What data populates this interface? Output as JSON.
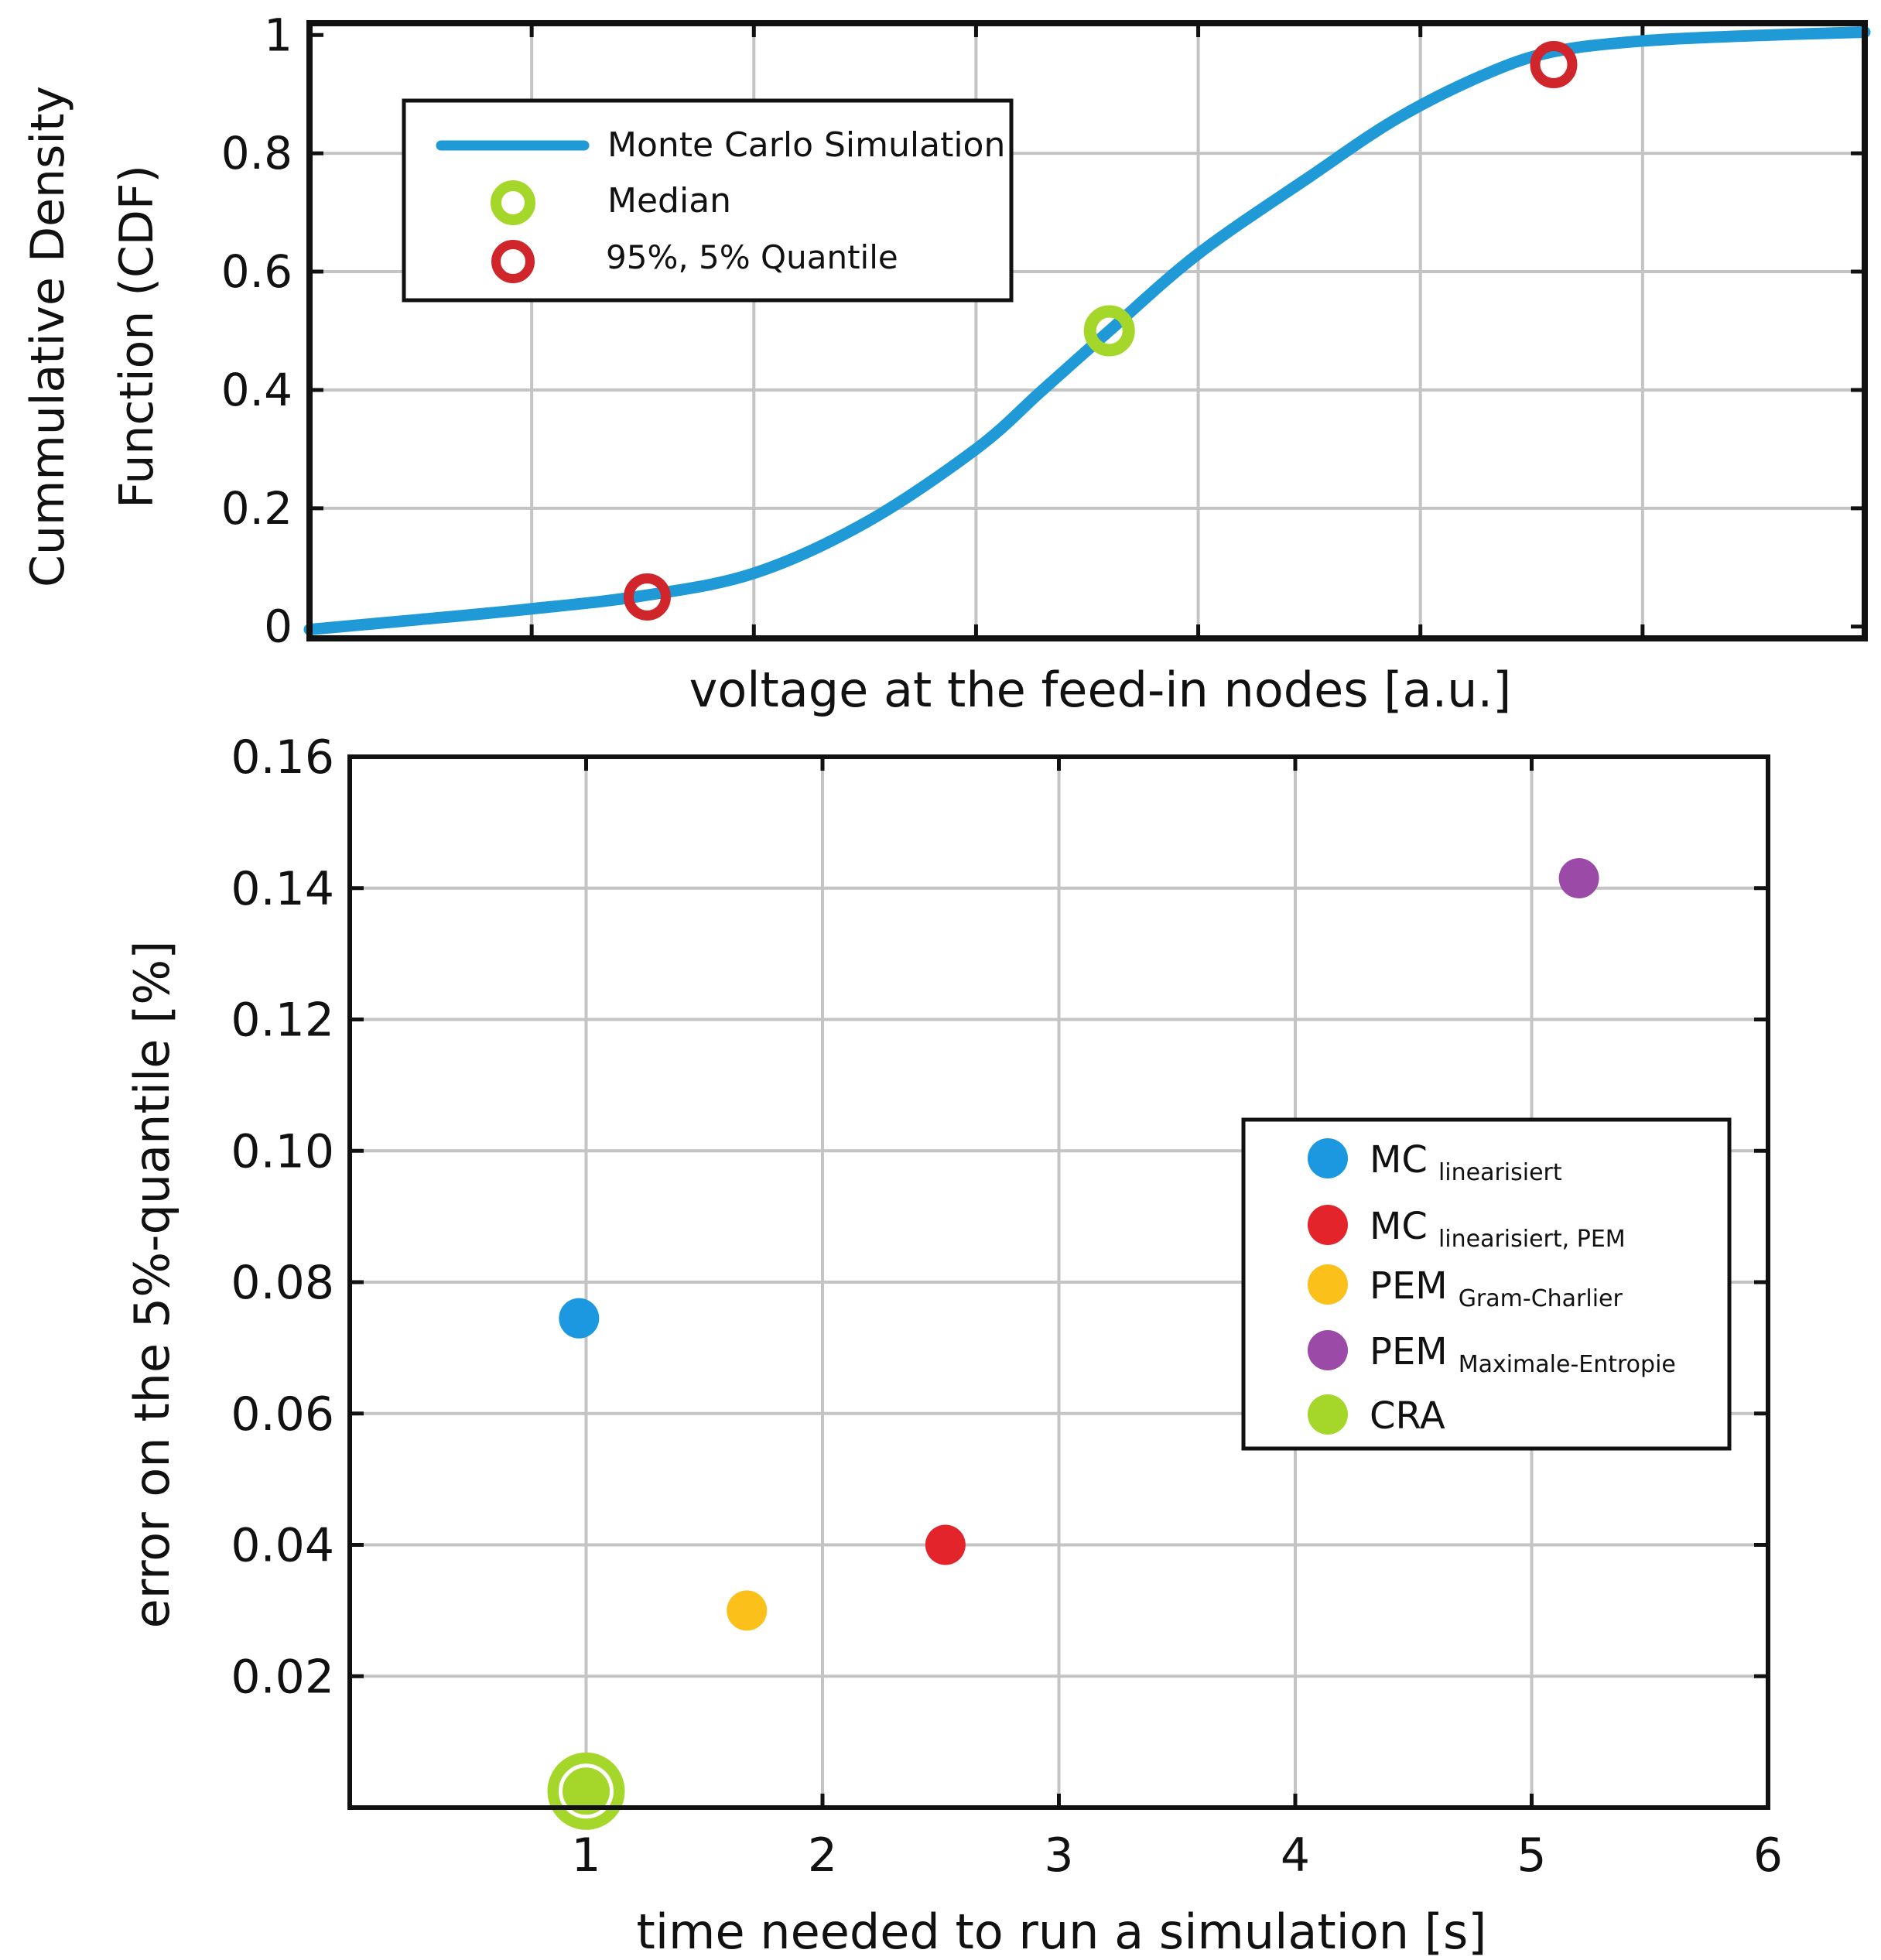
{
  "chart_data": [
    {
      "type": "line",
      "title": "",
      "xlabel": "voltage at the feed-in nodes [a.u.]",
      "ylabel_lines": [
        "Cummulative Density",
        "Function (CDF)"
      ],
      "xlim": [
        0,
        7
      ],
      "ylim": [
        -0.02,
        1.02
      ],
      "x_ticks": [
        1,
        2,
        3,
        4,
        5,
        6
      ],
      "x_tick_labels_shown": false,
      "y_ticks": [
        0,
        0.2,
        0.4,
        0.6,
        0.8,
        1
      ],
      "y_tick_labels": [
        "0",
        "0.2",
        "0.4",
        "0.6",
        "0.8",
        "1"
      ],
      "grid": true,
      "legend_position": "top-left",
      "colors": {
        "line": "#1f9ad6",
        "median": "#a4d72a",
        "quantile": "#d0262b"
      },
      "series": [
        {
          "name": "Monte Carlo Simulation",
          "points": [
            [
              0,
              -0.005
            ],
            [
              0.5,
              0.012
            ],
            [
              1.0,
              0.03
            ],
            [
              1.5,
              0.052
            ],
            [
              2.0,
              0.09
            ],
            [
              2.5,
              0.175
            ],
            [
              3.0,
              0.3
            ],
            [
              3.3,
              0.4
            ],
            [
              3.6,
              0.5
            ],
            [
              4.0,
              0.63
            ],
            [
              4.5,
              0.76
            ],
            [
              4.9,
              0.86
            ],
            [
              5.3,
              0.935
            ],
            [
              5.6,
              0.972
            ],
            [
              6.0,
              0.99
            ],
            [
              6.5,
              0.999
            ],
            [
              7.0,
              1.005
            ]
          ]
        }
      ],
      "markers": [
        {
          "name": "Median",
          "x": 3.6,
          "y": 0.5,
          "color": "#a4d72a"
        },
        {
          "name": "95%, 5% Quantile",
          "x": 1.52,
          "y": 0.05,
          "color": "#d0262b"
        },
        {
          "name": "95%, 5% Quantile",
          "x": 5.6,
          "y": 0.95,
          "color": "#d0262b"
        }
      ],
      "legend": [
        {
          "label": "Monte Carlo Simulation",
          "kind": "line",
          "color": "#1f9ad6"
        },
        {
          "label": "Median",
          "kind": "ring",
          "color": "#a4d72a"
        },
        {
          "label": "95%, 5% Quantile",
          "kind": "ring",
          "color": "#d0262b"
        }
      ]
    },
    {
      "type": "scatter",
      "title": "",
      "xlabel": "time needed to run a simulation [s]",
      "ylabel": "error on the 5%-quantile [%]",
      "xlim": [
        0,
        6
      ],
      "ylim": [
        0,
        0.16
      ],
      "x_ticks": [
        1,
        2,
        3,
        4,
        5,
        6
      ],
      "x_tick_labels": [
        "1",
        "2",
        "3",
        "4",
        "5",
        "6"
      ],
      "y_ticks": [
        0.02,
        0.04,
        0.06,
        0.08,
        0.1,
        0.12,
        0.14,
        0.16
      ],
      "y_tick_labels": [
        "0.02",
        "0.04",
        "0.06",
        "0.08",
        "0.10",
        "0.12",
        "0.14",
        "0.16"
      ],
      "grid": true,
      "legend_position": "right",
      "series": [
        {
          "name": "MC",
          "sub": "linearisiert",
          "color": "#1b98e0",
          "x": 0.97,
          "y": 0.0745
        },
        {
          "name": "MC",
          "sub": "linearisiert, PEM",
          "color": "#e3242b",
          "x": 2.52,
          "y": 0.04
        },
        {
          "name": "PEM",
          "sub": "Gram-Charlier",
          "color": "#fbc01a",
          "x": 1.68,
          "y": 0.03
        },
        {
          "name": "PEM",
          "sub": "Maximale-Entropie",
          "color": "#9b4aa8",
          "x": 5.2,
          "y": 0.1415
        },
        {
          "name": "CRA",
          "sub": "",
          "color": "#a4d72a",
          "x": 1.0,
          "y": 0.0025
        }
      ]
    }
  ]
}
